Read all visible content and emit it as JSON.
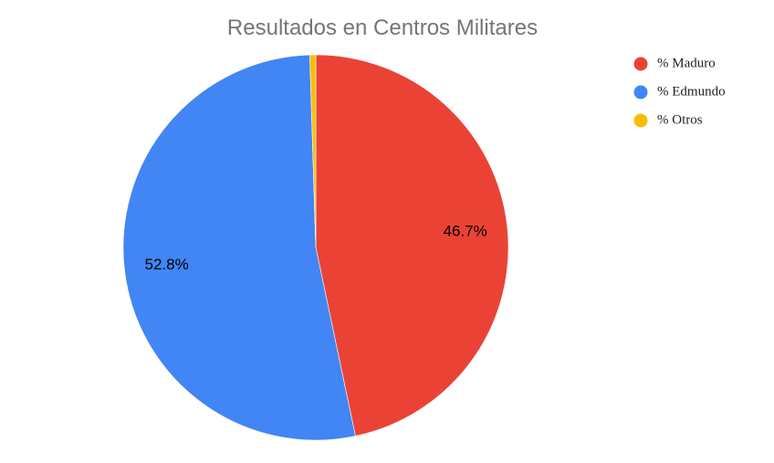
{
  "chart_data": {
    "type": "pie",
    "title": "Resultados en Centros Militares",
    "categories": [
      "% Maduro",
      "% Edmundo",
      "% Otros"
    ],
    "values": [
      46.7,
      52.8,
      0.5
    ],
    "labels": [
      "46.7%",
      "52.8%",
      ""
    ],
    "colors": [
      "#ea4335",
      "#4285f4",
      "#fbbc04"
    ],
    "legend_position": "right"
  }
}
